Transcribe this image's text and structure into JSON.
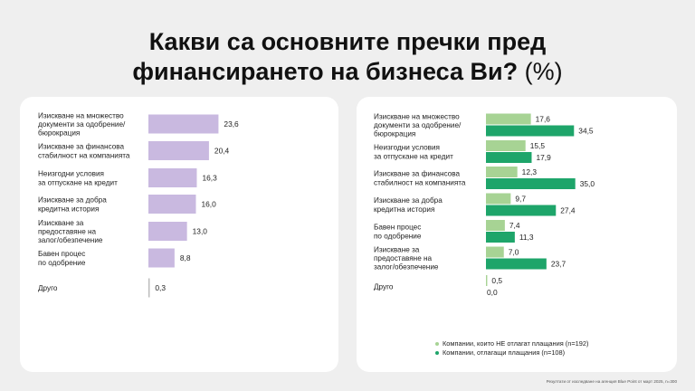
{
  "title_line1": "Какви са основните пречки пред",
  "title_line2": "финансирането на бизнеса Ви?",
  "title_unit": "(%)",
  "footnote": "Резултати от изследване на агенция Blue Point от март 2025, n=300",
  "colors": {
    "left_bar": "#c9b9e0",
    "right_series_1": "#a7d394",
    "right_series_2": "#1ea56a",
    "panel": "#ffffff",
    "background": "#efefef"
  },
  "chart_data": [
    {
      "type": "bar",
      "orientation": "horizontal",
      "categories": [
        [
          "Изискване на множество",
          "документи за одобрение/",
          "бюрокрация"
        ],
        [
          "Изискване за финансова",
          "стабилност на компанията"
        ],
        [
          "Неизгодни условия",
          "за отпускане на кредит"
        ],
        [
          "Изискване за добра",
          "кредитна история"
        ],
        [
          "Изискване за",
          "предоставяне на",
          "залог/обезпечение"
        ],
        [
          "Бавен процес",
          "по одобрение"
        ],
        [
          "Друго"
        ]
      ],
      "values": [
        23.6,
        20.4,
        16.3,
        16.0,
        13.0,
        8.8,
        0.3
      ],
      "value_labels": [
        "23,6",
        "20,4",
        "16,3",
        "16,0",
        "13,0",
        "8,8",
        "0,3"
      ],
      "grid": false
    },
    {
      "type": "bar",
      "orientation": "horizontal",
      "categories": [
        [
          "Изискване на множество",
          "документи за одобрение/",
          "бюрокрация"
        ],
        [
          "Неизгодни условия",
          "за отпускане на кредит"
        ],
        [
          "Изискване за финансова",
          "стабилност на компанията"
        ],
        [
          "Изискване за добра",
          "кредитна история"
        ],
        [
          "Бавен процес",
          "по одобрение"
        ],
        [
          "Изискване за",
          "предоставяне на",
          "залог/обезпечение"
        ],
        [
          "Друго"
        ]
      ],
      "series": [
        {
          "name": "Компании, които НЕ отлагат плащания (n=192)",
          "values": [
            17.6,
            15.5,
            12.3,
            9.7,
            7.4,
            7.0,
            0.5
          ],
          "value_labels": [
            "17,6",
            "15,5",
            "12,3",
            "9,7",
            "7,4",
            "7,0",
            "0,5"
          ]
        },
        {
          "name": "Компании, отлагащи плащания (n=108)",
          "values": [
            34.5,
            17.9,
            35.0,
            27.4,
            11.3,
            23.7,
            0.0
          ],
          "value_labels": [
            "34,5",
            "17,9",
            "35,0",
            "27,4",
            "11,3",
            "23,7",
            "0,0"
          ]
        }
      ],
      "legend_position": "bottom",
      "grid": false
    }
  ]
}
